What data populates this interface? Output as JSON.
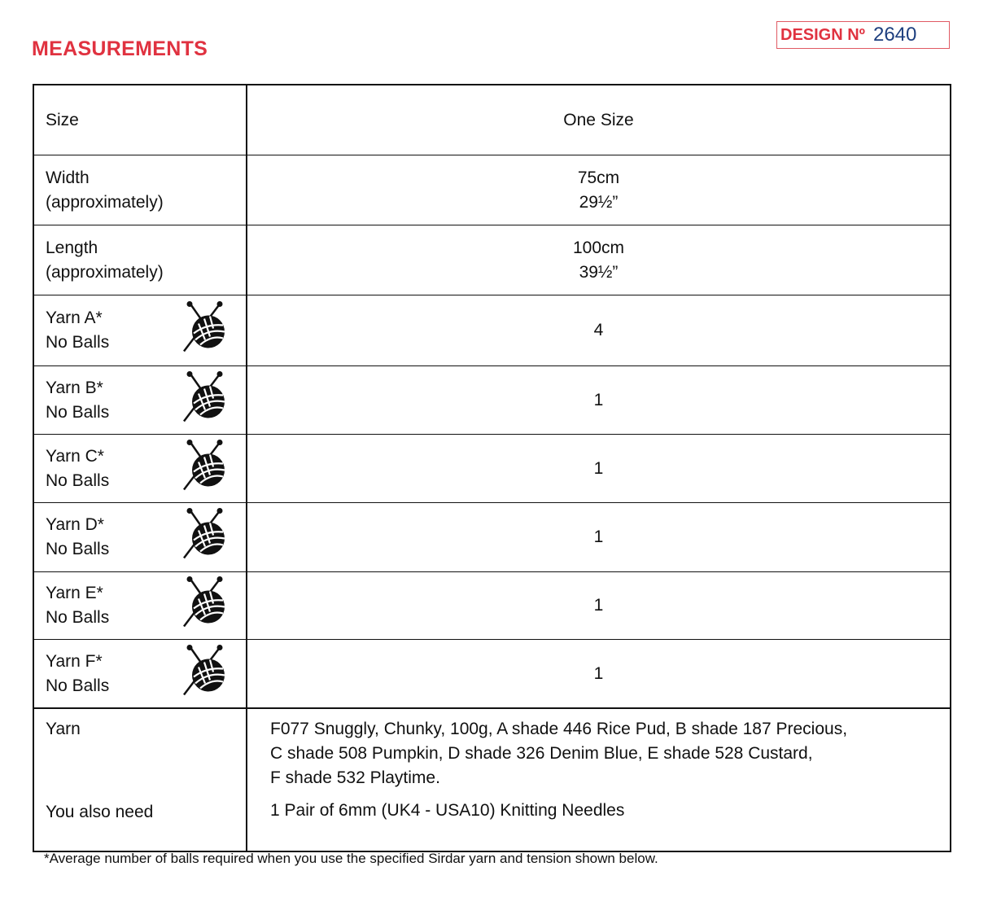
{
  "title": "MEASUREMENTS",
  "design": {
    "label": "DESIGN Nº",
    "number": "2640"
  },
  "rows": [
    {
      "label1": "Size",
      "value1": "One Size"
    },
    {
      "label1": "Width",
      "label2": "(approximately)",
      "value1": "75cm",
      "value2": "29½”"
    },
    {
      "label1": "Length",
      "label2": "(approximately)",
      "value1": "100cm",
      "value2": "39½”"
    },
    {
      "label1": "Yarn A*",
      "label2": "No Balls",
      "value1": "4",
      "icon": "yarn-ball-needles-icon"
    },
    {
      "label1": "Yarn B*",
      "label2": "No Balls",
      "value1": "1",
      "icon": "yarn-ball-needles-icon"
    },
    {
      "label1": "Yarn C*",
      "label2": "No Balls",
      "value1": "1",
      "icon": "yarn-ball-needles-icon"
    },
    {
      "label1": "Yarn D*",
      "label2": "No Balls",
      "value1": "1",
      "icon": "yarn-ball-needles-icon"
    },
    {
      "label1": "Yarn E*",
      "label2": "No Balls",
      "value1": "1",
      "icon": "yarn-ball-needles-icon"
    },
    {
      "label1": "Yarn F*",
      "label2": "No Balls",
      "value1": "1",
      "icon": "yarn-ball-needles-icon"
    }
  ],
  "yarn": {
    "label": "Yarn",
    "lines": [
      "F077 Snuggly, Chunky, 100g, A shade 446 Rice Pud, B shade 187 Precious,",
      "C shade 508 Pumpkin, D shade 326 Denim Blue, E shade 528 Custard,",
      "F shade 532 Playtime."
    ],
    "also_label": "You also need",
    "also_value": "1 Pair of 6mm (UK4 - USA10) Knitting Needles"
  },
  "footnote": "*Average number of balls required when you use the specified Sirdar yarn and tension shown below."
}
